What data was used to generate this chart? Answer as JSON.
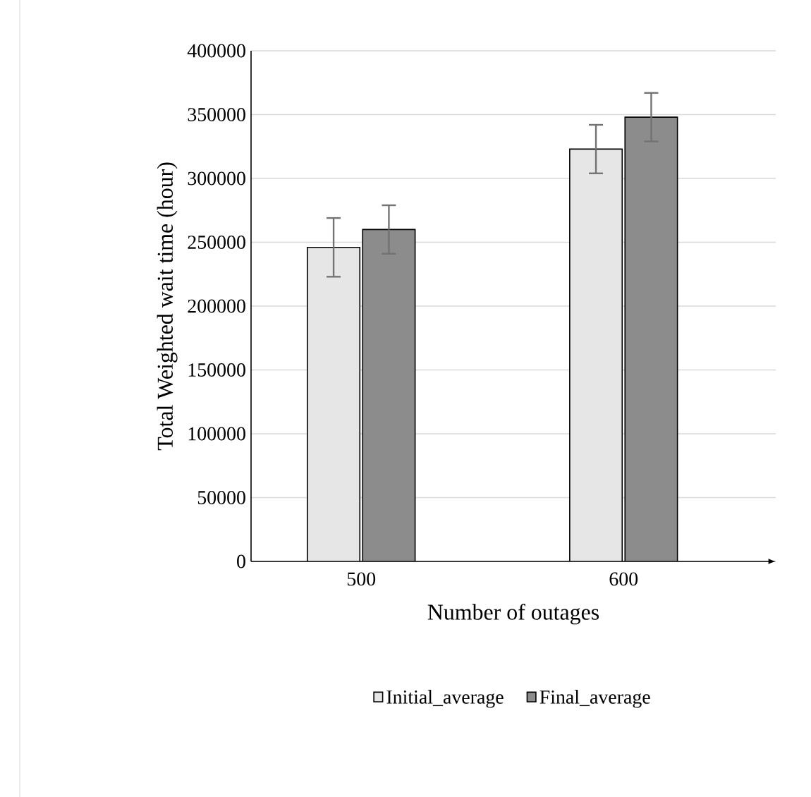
{
  "chart_data": {
    "type": "bar",
    "xlabel": "Number of outages",
    "ylabel": "Total Weighted wait time (hour)",
    "categories": [
      "500",
      "600"
    ],
    "series": [
      {
        "name": "Initial_average",
        "color": "#e6e6e6",
        "values": [
          246000,
          323000
        ],
        "errors": [
          23000,
          19000
        ]
      },
      {
        "name": "Final_average",
        "color": "#8c8c8c",
        "values": [
          260000,
          348000
        ],
        "errors": [
          19000,
          19000
        ]
      }
    ],
    "ylim": [
      0,
      400000
    ],
    "yticks": [
      0,
      50000,
      100000,
      150000,
      200000,
      250000,
      300000,
      350000,
      400000
    ],
    "grid": "y",
    "legend": "bottom"
  }
}
